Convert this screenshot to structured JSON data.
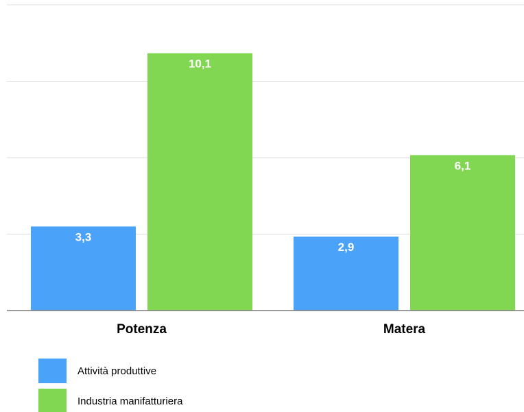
{
  "chart_data": {
    "type": "bar",
    "categories": [
      "Potenza",
      "Matera"
    ],
    "series": [
      {
        "name": "Attività produttive",
        "values": [
          3.3,
          2.9
        ],
        "labels": [
          "3,3",
          "2,9"
        ],
        "color": "#4aa3f8"
      },
      {
        "name": "Industria manifatturiera",
        "values": [
          10.1,
          6.1
        ],
        "labels": [
          "10,1",
          "6,1"
        ],
        "color": "#81d752"
      }
    ],
    "title": "",
    "xlabel": "",
    "ylabel": "",
    "ylim": [
      0,
      12
    ],
    "y_gridlines": [
      0,
      3,
      6,
      9,
      12
    ],
    "y_tick_labels_shown": false,
    "grid": true,
    "legend_position": "bottom-left",
    "colors": {
      "gridline": "#dcdcdc",
      "baseline": "#7a7a7a",
      "label_text": "#ffffff"
    }
  }
}
